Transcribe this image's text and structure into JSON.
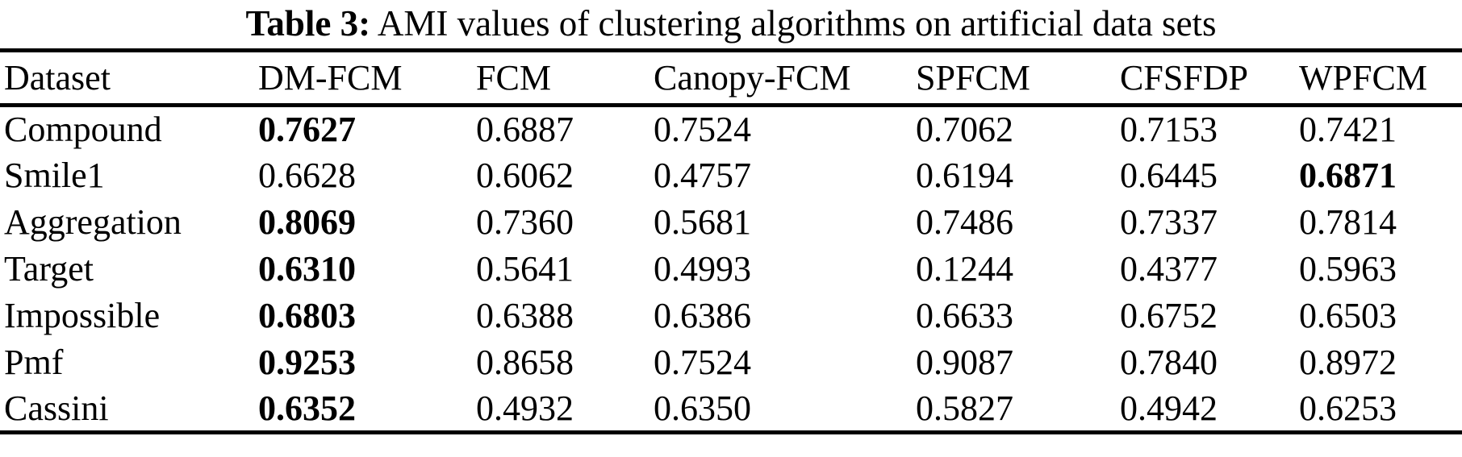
{
  "caption": {
    "label": "Table 3:",
    "text": " AMI values of clustering algorithms on artificial data sets"
  },
  "table": {
    "columns": [
      "Dataset",
      "DM-FCM",
      "FCM",
      "Canopy-FCM",
      "SPFCM",
      "CFSFDP",
      "WPFCM"
    ],
    "rows": [
      {
        "name": "Compound",
        "values": [
          "0.7627",
          "0.6887",
          "0.7524",
          "0.7062",
          "0.7153",
          "0.7421"
        ],
        "bold_value": 0
      },
      {
        "name": "Smile1",
        "values": [
          "0.6628",
          "0.6062",
          "0.4757",
          "0.6194",
          "0.6445",
          "0.6871"
        ],
        "bold_value": 5
      },
      {
        "name": "Aggregation",
        "values": [
          "0.8069",
          "0.7360",
          "0.5681",
          "0.7486",
          "0.7337",
          "0.7814"
        ],
        "bold_value": 0
      },
      {
        "name": "Target",
        "values": [
          "0.6310",
          "0.5641",
          "0.4993",
          "0.1244",
          "0.4377",
          "0.5963"
        ],
        "bold_value": 0
      },
      {
        "name": "Impossible",
        "values": [
          "0.6803",
          "0.6388",
          "0.6386",
          "0.6633",
          "0.6752",
          "0.6503"
        ],
        "bold_value": 0
      },
      {
        "name": "Pmf",
        "values": [
          "0.9253",
          "0.8658",
          "0.7524",
          "0.9087",
          "0.7840",
          "0.8972"
        ],
        "bold_value": 0
      },
      {
        "name": "Cassini",
        "values": [
          "0.6352",
          "0.4932",
          "0.6350",
          "0.5827",
          "0.4942",
          "0.6253"
        ],
        "bold_value": 0
      }
    ]
  }
}
